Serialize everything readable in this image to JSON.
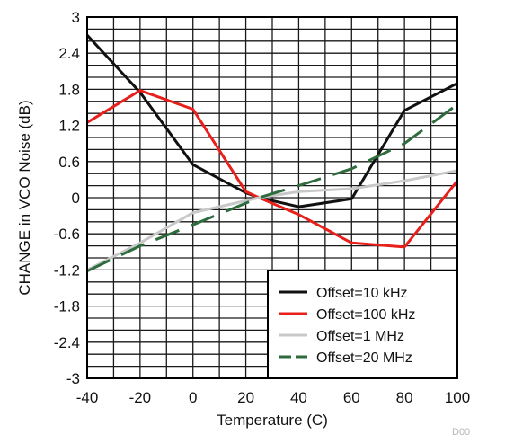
{
  "chart_data": {
    "type": "line",
    "xlabel": "Temperature (C)",
    "ylabel": "CHANGE in VCO Noise (dB)",
    "xlim": [
      -40,
      100
    ],
    "ylim": [
      -3,
      3
    ],
    "x_ticks": [
      -40,
      -20,
      0,
      20,
      40,
      60,
      80,
      100
    ],
    "y_ticks": [
      "3",
      "2.4",
      "1.8",
      "1.2",
      "0.6",
      "0",
      "-0.6",
      "-1.2",
      "-1.8",
      "-2.4",
      "-3"
    ],
    "y_tick_values": [
      3,
      2.4,
      1.8,
      1.2,
      0.6,
      0,
      -0.6,
      -1.2,
      -1.8,
      -2.4,
      -3
    ],
    "grid": true,
    "legend_position": "bottom-right",
    "series": [
      {
        "name": "Offset=10 kHz",
        "color": "#111111",
        "dash": "solid",
        "x": [
          -40,
          -20,
          0,
          20,
          25,
          40,
          60,
          80,
          100
        ],
        "y": [
          2.7,
          1.75,
          0.55,
          0.08,
          0.0,
          -0.15,
          -0.02,
          1.45,
          1.9
        ]
      },
      {
        "name": "Offset=100 kHz",
        "color": "#e8201c",
        "dash": "solid",
        "x": [
          -40,
          -20,
          0,
          20,
          25,
          40,
          60,
          80,
          100
        ],
        "y": [
          1.25,
          1.78,
          1.47,
          0.1,
          0.0,
          -0.28,
          -0.75,
          -0.82,
          0.28
        ]
      },
      {
        "name": "Offset=1 MHz",
        "color": "#c8c8c8",
        "dash": "solid",
        "x": [
          -40,
          -20,
          0,
          25,
          40,
          60,
          80,
          100
        ],
        "y": [
          -1.2,
          -0.75,
          -0.25,
          0.0,
          0.1,
          0.15,
          0.28,
          0.45
        ]
      },
      {
        "name": "Offset=20 MHz",
        "color": "#2e6b3d",
        "dash": "dashed",
        "x": [
          -40,
          -20,
          0,
          25,
          40,
          60,
          80,
          100
        ],
        "y": [
          -1.22,
          -0.8,
          -0.45,
          0.0,
          0.2,
          0.48,
          0.9,
          1.55
        ]
      }
    ],
    "footnote": "D00"
  }
}
